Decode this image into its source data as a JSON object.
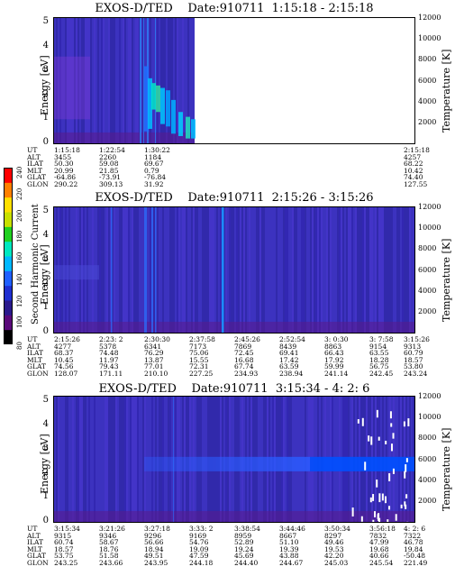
{
  "colorbar": {
    "label": "Second Harmonic Current",
    "ticks": [
      "80",
      "100",
      "120",
      "140",
      "160",
      "180",
      "200",
      "220",
      "240"
    ],
    "colors": [
      "#000000",
      "#5a0a7a",
      "#2a1a8c",
      "#1f2fd0",
      "#2060ff",
      "#00b8ff",
      "#00e8c0",
      "#20d020",
      "#c8e000",
      "#ffe000",
      "#ff8000",
      "#ff0000"
    ]
  },
  "chart_data": [
    {
      "type": "heatmap",
      "title_left": "EXOS-D/TED",
      "title_date": "Date:910711  1:15:18 - 2:15:18",
      "ylabel": "Energy [eV]",
      "y2label": "Temperature [K]",
      "yticks": [
        "0",
        "1",
        "2",
        "3",
        "4",
        "5"
      ],
      "ylim": [
        0,
        5.2
      ],
      "y2ticks": [
        "2000",
        "4000",
        "6000",
        "8000",
        "10000",
        "12000"
      ],
      "y2lim": [
        0,
        12000
      ],
      "data_end_fraction": 0.39,
      "ephemeris": {
        "row_labels": [
          "UT",
          "ALT",
          "ILAT",
          "MLT",
          "GLAT",
          "GLON"
        ],
        "columns": [
          [
            "1:15:18",
            "3455",
            "50.30",
            "20.99",
            "-64.86",
            "290.22"
          ],
          [
            "1:22:54",
            "2260",
            "59.08",
            "21.85",
            "-73.91",
            "309.13"
          ],
          [
            "1:30:22",
            "1184",
            "69.67",
            "0.79",
            "-76.84",
            "31.92"
          ],
          [
            "2:15:18",
            "4257",
            "68.22",
            "10.42",
            "74.40",
            "127.55"
          ]
        ],
        "col_offsets": [
          0,
          50,
          100,
          400
        ]
      }
    },
    {
      "type": "heatmap",
      "title_left": "EXOS-D/TED",
      "title_date": "Date:910711  2:15:26 - 3:15:26",
      "ylabel": "Energy [eV]",
      "y2label": "Temperature [K]",
      "yticks": [
        "0",
        "1",
        "2",
        "3",
        "4",
        "5"
      ],
      "ylim": [
        0,
        5.2
      ],
      "y2ticks": [
        "2000",
        "4000",
        "6000",
        "8000",
        "10000",
        "12000"
      ],
      "y2lim": [
        0,
        12000
      ],
      "data_end_fraction": 1.0,
      "ephemeris": {
        "row_labels": [
          "UT",
          "ALT",
          "ILAT",
          "MLT",
          "GLAT",
          "GLON"
        ],
        "columns": [
          [
            "2:15:26",
            "4277",
            "68.37",
            "10.45",
            "74.56",
            "128.07"
          ],
          [
            "2:23: 2",
            "5378",
            "74.48",
            "11.97",
            "79.43",
            "171.11"
          ],
          [
            "2:30:30",
            "6341",
            "76.29",
            "13.87",
            "77.01",
            "210.10"
          ],
          [
            "2:37:58",
            "7173",
            "75.06",
            "15.55",
            "72.31",
            "227.25"
          ],
          [
            "2:45:26",
            "7869",
            "72.45",
            "16.68",
            "67.74",
            "234.93"
          ],
          [
            "2:52:54",
            "8439",
            "69.41",
            "17.42",
            "63.59",
            "238.94"
          ],
          [
            "3: 0:30",
            "8863",
            "66.43",
            "17.92",
            "59.99",
            "241.14"
          ],
          [
            "3: 7:58",
            "9154",
            "63.55",
            "18.28",
            "56.75",
            "242.45"
          ],
          [
            "3:15:26",
            "9313",
            "60.79",
            "18.57",
            "53.80",
            "243.24"
          ]
        ],
        "col_offsets": [
          0,
          50,
          100,
          150,
          200,
          250,
          300,
          350,
          400
        ]
      }
    },
    {
      "type": "heatmap",
      "title_left": "EXOS-D/TED",
      "title_date": "Date:910711  3:15:34 - 4: 2: 6",
      "ylabel": "Energy [eV]",
      "y2label": "Temperature [K]",
      "yticks": [
        "0",
        "1",
        "2",
        "3",
        "4",
        "5"
      ],
      "ylim": [
        0,
        5.2
      ],
      "y2ticks": [
        "2000",
        "4000",
        "6000",
        "8000",
        "10000",
        "12000"
      ],
      "y2lim": [
        0,
        12000
      ],
      "data_end_fraction": 1.0,
      "ephemeris": {
        "row_labels": [
          "UT",
          "ALT",
          "ILAT",
          "MLT",
          "GLAT",
          "GLON"
        ],
        "columns": [
          [
            "3:15:34",
            "9315",
            "60.74",
            "18.57",
            "53.75",
            "243.25"
          ],
          [
            "3:21:26",
            "9346",
            "58.67",
            "18.76",
            "51.58",
            "243.66"
          ],
          [
            "3:27:18",
            "9296",
            "56.66",
            "18.94",
            "49.51",
            "243.95"
          ],
          [
            "3:33: 2",
            "9169",
            "54.76",
            "19.09",
            "47.59",
            "244.18"
          ],
          [
            "3:38:54",
            "8959",
            "52.89",
            "19.24",
            "45.69",
            "244.40"
          ],
          [
            "3:44:46",
            "8667",
            "51.10",
            "19.39",
            "43.88",
            "244.67"
          ],
          [
            "3:50:34",
            "8297",
            "49.46",
            "19.53",
            "42.20",
            "245.03"
          ],
          [
            "3:56:18",
            "7832",
            "47.99",
            "19.68",
            "40.66",
            "245.54"
          ],
          [
            "4: 2: 6",
            "7322",
            "46.78",
            "19.84",
            "-50.48",
            "221.49"
          ]
        ],
        "col_offsets": [
          0,
          50,
          100,
          150,
          200,
          250,
          300,
          350,
          400
        ]
      }
    }
  ]
}
